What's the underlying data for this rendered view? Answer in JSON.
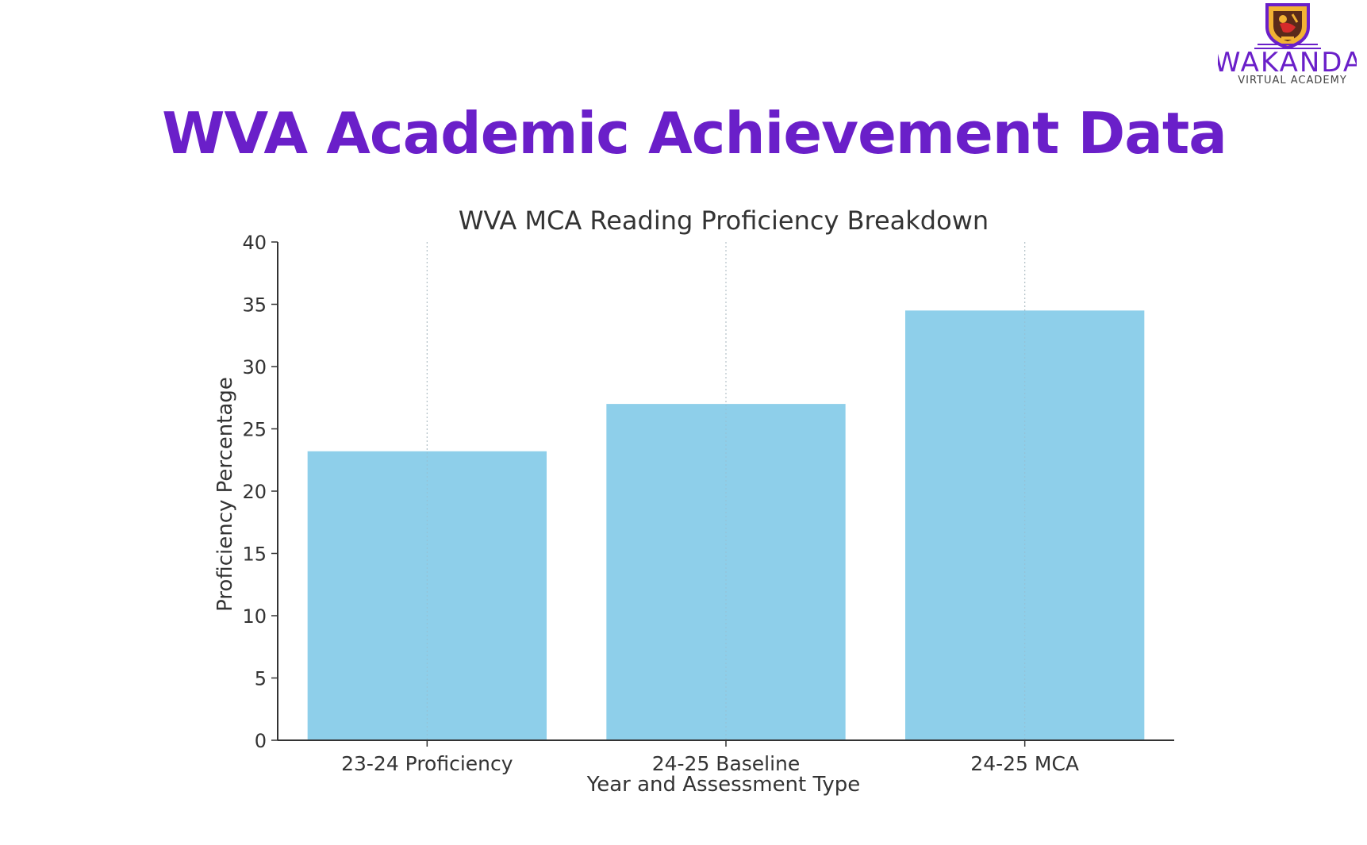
{
  "slide": {
    "title": "WVA Academic Achievement Data"
  },
  "logo": {
    "name": "WAKANDA",
    "subtitle": "VIRTUAL ACADEMY",
    "icon": "shield-bird-icon",
    "colors": {
      "purple": "#6a1fc9",
      "gold": "#f2b233",
      "red": "#d62b2b"
    }
  },
  "colors": {
    "title": "#6a1fc9",
    "bar": "#8ecfea",
    "axis": "#333333",
    "grid": "#cccccc"
  },
  "chart_data": {
    "type": "bar",
    "title": "WVA MCA Reading Proficiency Breakdown",
    "xlabel": "Year and Assessment Type",
    "ylabel": "Proficiency Percentage",
    "categories": [
      "23-24 Proficiency",
      "24-25 Baseline",
      "24-25 MCA"
    ],
    "values": [
      23.2,
      27.0,
      34.5
    ],
    "ylim": [
      0,
      40
    ],
    "yticks": [
      0,
      5,
      10,
      15,
      20,
      25,
      30,
      35,
      40
    ],
    "grid": "vertical dotted lines at category ticks",
    "legend": "none"
  }
}
